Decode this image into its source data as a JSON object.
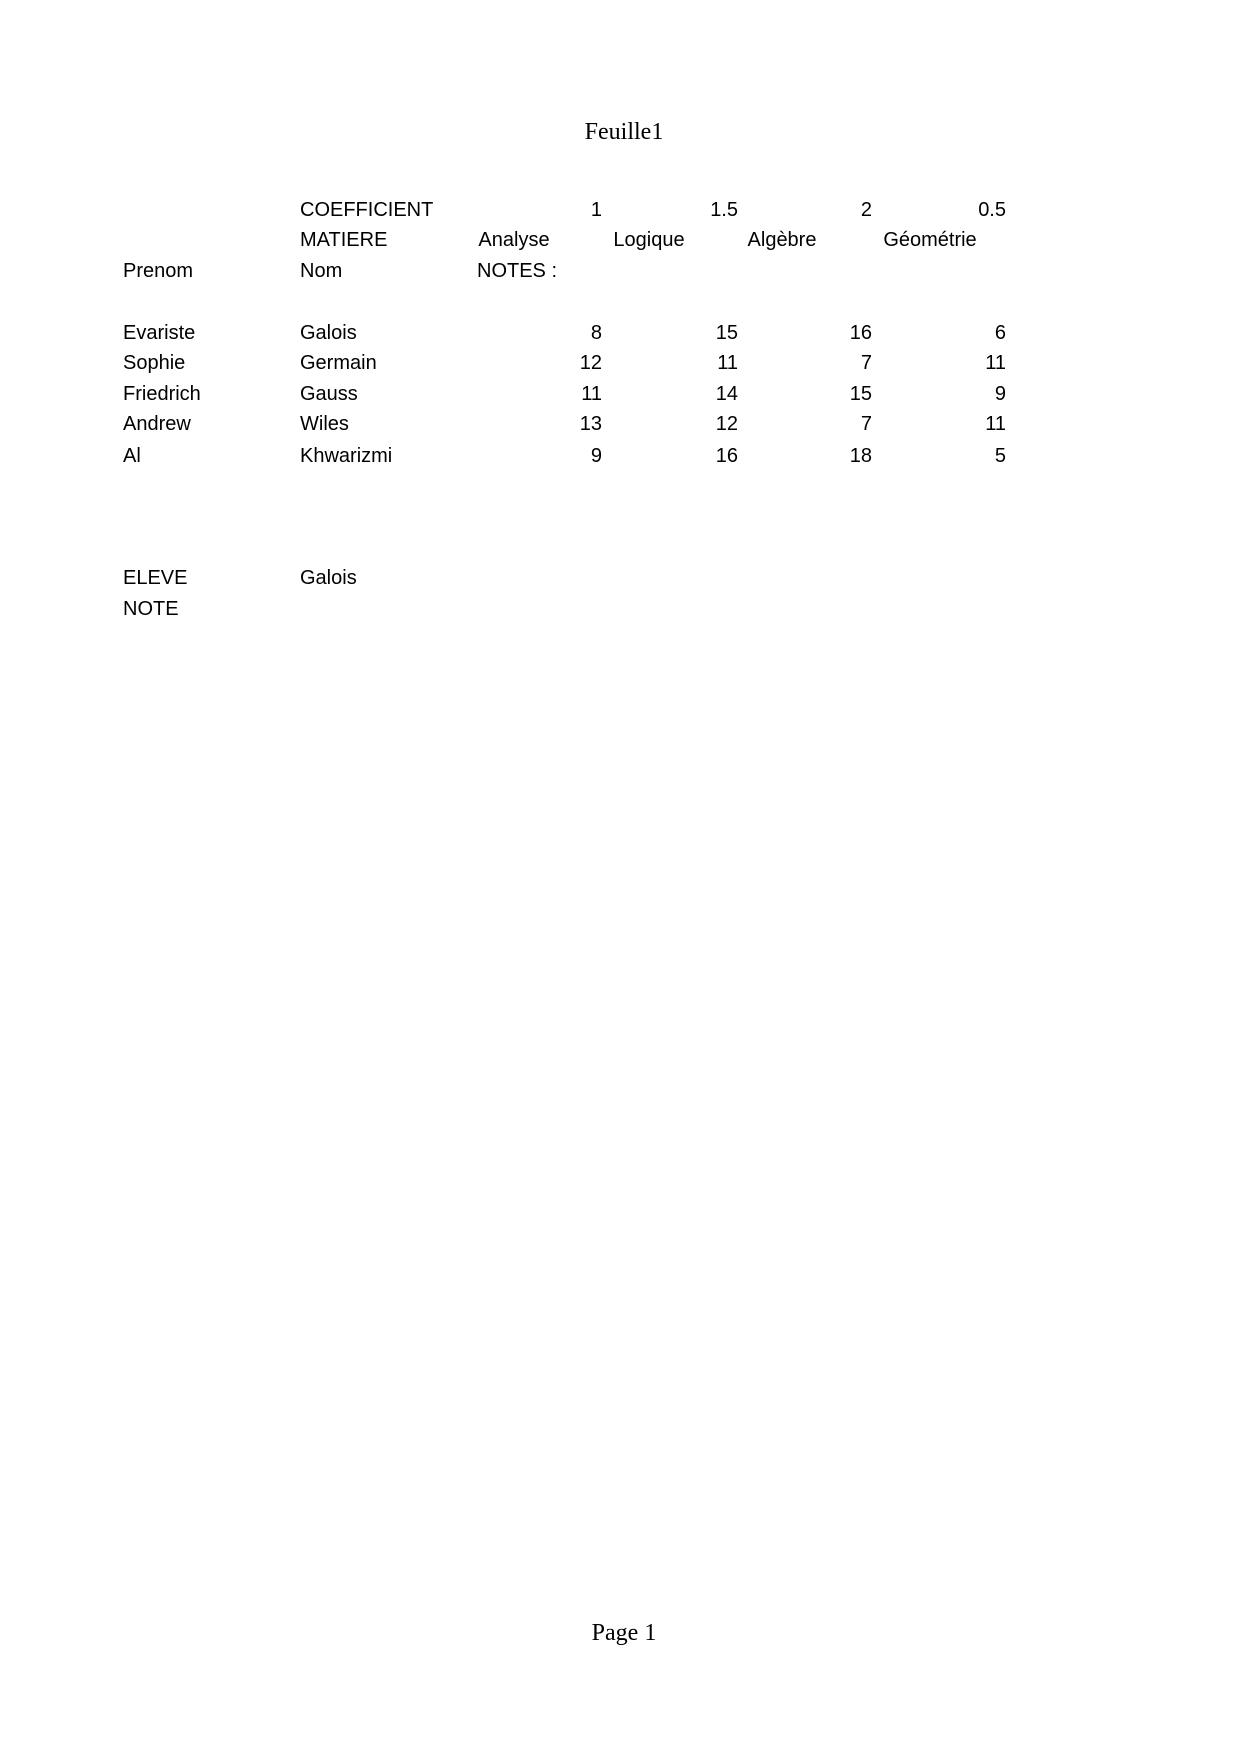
{
  "header": {
    "title": "Feuille1"
  },
  "footer": {
    "page": "Page 1"
  },
  "sheet": {
    "coefficient_label": "COEFFICIENT",
    "coefficients": [
      "1",
      "1.5",
      "2",
      "0.5"
    ],
    "matiere_label": "MATIERE",
    "subjects": [
      "Analyse",
      "Logique",
      "Algèbre",
      "Géométrie"
    ],
    "prenom_label": "Prenom",
    "nom_label": "Nom",
    "notes_label": "NOTES :",
    "rows": [
      {
        "prenom": "Evariste",
        "nom": "Galois",
        "notes": [
          "8",
          "15",
          "16",
          "6"
        ]
      },
      {
        "prenom": "Sophie",
        "nom": "Germain",
        "notes": [
          "12",
          "11",
          "7",
          "11"
        ]
      },
      {
        "prenom": "Friedrich",
        "nom": "Gauss",
        "notes": [
          "11",
          "14",
          "15",
          "9"
        ]
      },
      {
        "prenom": "Andrew",
        "nom": "Wiles",
        "notes": [
          "13",
          "12",
          "7",
          "11"
        ]
      },
      {
        "prenom": "Al",
        "nom": "Khwarizmi",
        "notes": [
          "9",
          "16",
          "18",
          "5"
        ]
      }
    ],
    "eleve_label": "ELEVE",
    "eleve_value": "Galois",
    "note_label": "NOTE"
  }
}
